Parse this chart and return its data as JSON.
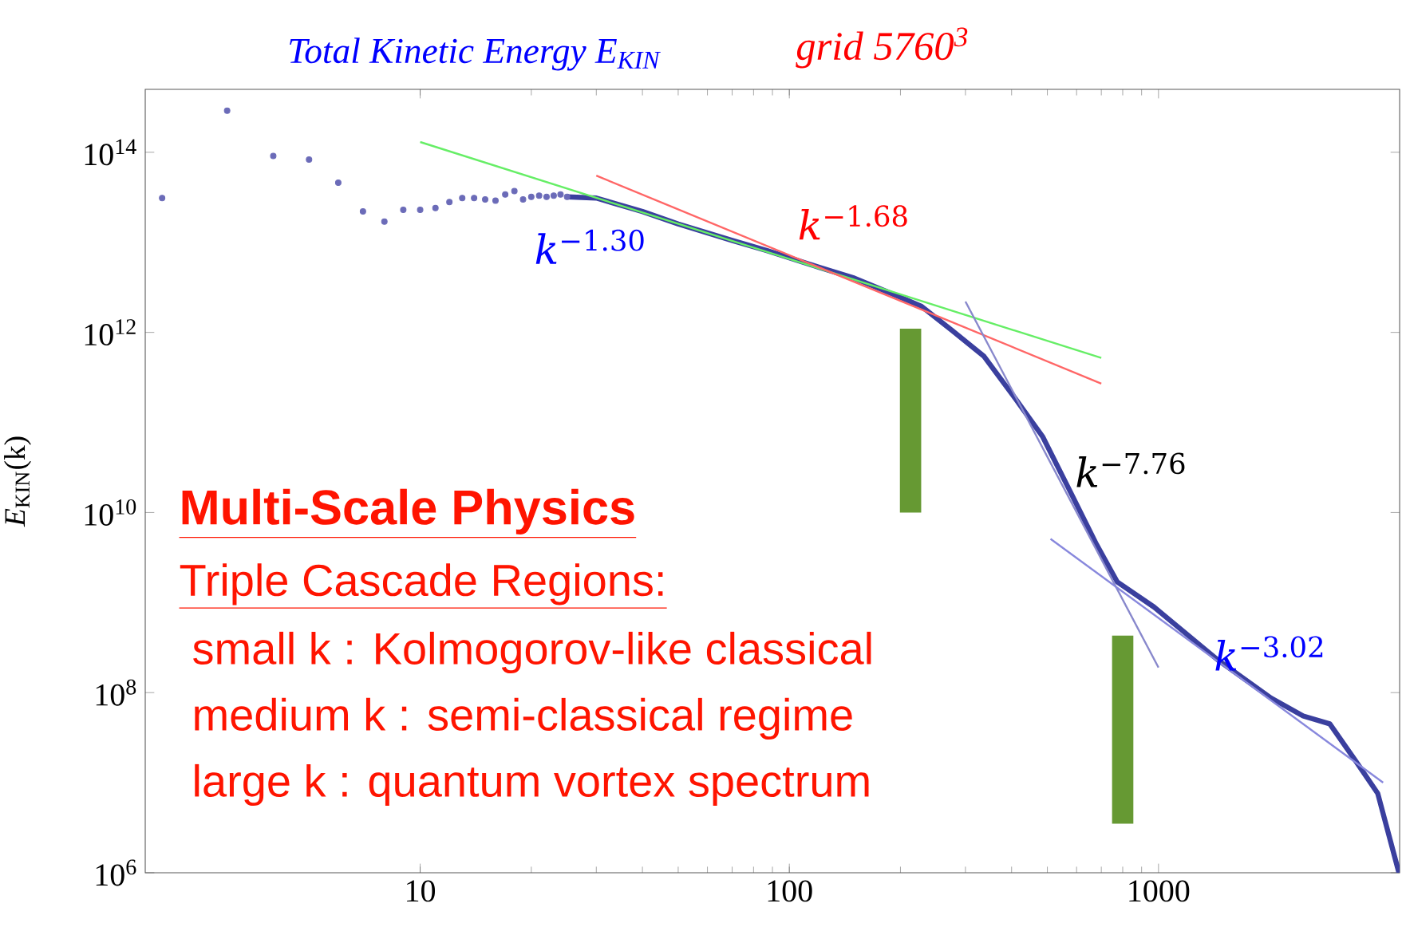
{
  "chart_data": {
    "type": "line",
    "title": "Total Kinetic Energy E$_{KIN}$",
    "subtitle": "grid 5760$^{3}$",
    "ylabel": "*E*$_{KIN}$(k)",
    "log": "xy",
    "xlim": [
      1.8,
      4500
    ],
    "ylim": [
      1000000.0,
      500000000000000.0
    ],
    "xticks": [
      10,
      100,
      1000
    ],
    "yticks": [
      {
        "value": 1000000.0,
        "label": "10$^{6}$"
      },
      {
        "value": 100000000.0,
        "label": "10$^{8}$"
      },
      {
        "value": 10000000000.0,
        "label": "10$^{10}$"
      },
      {
        "value": 1000000000000.0,
        "label": "10$^{12}$"
      },
      {
        "value": 100000000000000.0,
        "label": "10$^{14}$"
      }
    ],
    "series": [
      {
        "type": "scatter",
        "marker": "circle",
        "color": "#6b6bb8",
        "x": [
          2,
          3,
          4,
          5,
          6,
          7,
          8,
          9,
          10,
          11,
          12,
          13,
          14,
          15,
          16,
          17,
          18,
          19,
          20,
          21,
          22,
          23,
          24,
          25
        ],
        "values": [
          31000000000000.0,
          290000000000000.0,
          91000000000000.0,
          83000000000000.0,
          46000000000000.0,
          22000000000000.0,
          17000000000000.0,
          23000000000000.0,
          23000000000000.0,
          24000000000000.0,
          28000000000000.0,
          31000000000000.0,
          31000000000000.0,
          30000000000000.0,
          29000000000000.0,
          34000000000000.0,
          37000000000000.0,
          30000000000000.0,
          32000000000000.0,
          33000000000000.0,
          32000000000000.0,
          33000000000000.0,
          34000000000000.0,
          32000000000000.0
        ]
      },
      {
        "color": "#3a3f9e",
        "x": [
          25,
          30,
          40,
          50,
          70,
          87,
          120,
          150,
          187,
          228,
          276,
          337,
          411,
          486,
          573,
          676,
          773,
          973,
          1449,
          2018,
          2466,
          2911,
          3436,
          3926,
          4480
        ],
        "values": [
          32000000000000.0,
          31000000000000.0,
          22000000000000.0,
          16000000000000.0,
          10500000000000.0,
          8100000000000.0,
          5300000000000.0,
          4000000000000.0,
          2750000000000.0,
          1950000000000.0,
          1050000000000.0,
          540000000000.0,
          180000000000.0,
          69000000000.0,
          18000000000.0,
          4600000000.0,
          1700000000.0,
          890000000.0,
          230000000.0,
          87000000.0,
          55000000.0,
          45000000.0,
          17000000.0,
          7600000.0,
          1000000.0
        ]
      },
      {
        "type": "line",
        "name": "*k*$^{−1.30}$",
        "color": "#66ee66",
        "x": [
          10,
          700
        ],
        "values": [
          130000000000000.0,
          520000000000.0
        ]
      },
      {
        "type": "line",
        "name": "*k*$^{−1.68}$",
        "color": "#ff6666",
        "x": [
          30,
          700
        ],
        "values": [
          55000000000000.0,
          270000000000.0
        ]
      },
      {
        "type": "line",
        "name": "*k*$^{−7.76}$",
        "color": "#8888cc",
        "x": [
          300,
          1000
        ],
        "values": [
          2200000000000.0,
          190000000.0
        ]
      },
      {
        "type": "line",
        "name": "*k*$^{−3.02}$",
        "color": "#8888dd",
        "x": [
          510,
          4060
        ],
        "values": [
          5100000000.0,
          10000000.0
        ]
      },
      {
        "type": "bar",
        "color": "#669933",
        "x": [
          213,
          800
        ],
        "base": [
          10000000000.0,
          3500000.0
        ],
        "values": [
          1090000000000.0,
          426500000.0
        ]
      }
    ],
    "annotations": [
      "Multi-Scale Physics",
      "Triple Cascade Regions:",
      "small k :  Kolmogorov-like classical",
      "medium k :  semi-classical regime",
      "large k :  quantum vortex spectrum"
    ]
  }
}
